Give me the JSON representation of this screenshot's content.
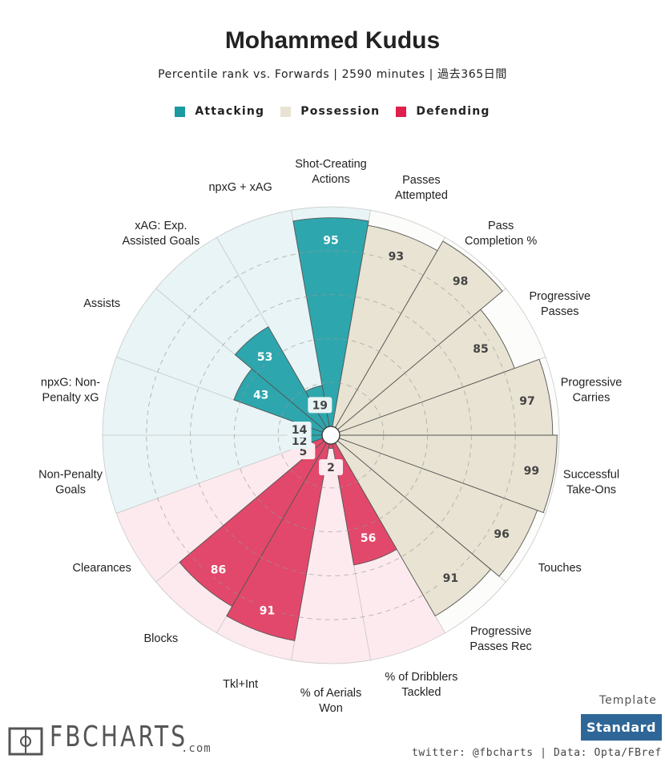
{
  "title": "Mohammed Kudus",
  "subtitle": "Percentile rank vs. Forwards | 2590 minutes | 過去365日間",
  "legend": [
    {
      "name": "Attacking",
      "color": "#2ea6ad"
    },
    {
      "name": "Possession",
      "color": "#e8e3d2"
    },
    {
      "name": "Defending",
      "color": "#e2486b"
    }
  ],
  "chart_data": {
    "type": "polar-bar",
    "range": [
      0,
      100
    ],
    "categories": [
      {
        "label": [
          "Shot-Creating",
          "Actions"
        ],
        "value": 95,
        "group": "Attacking"
      },
      {
        "label": [
          "Passes",
          "Attempted"
        ],
        "value": 93,
        "group": "Possession"
      },
      {
        "label": [
          "Pass",
          "Completion %"
        ],
        "value": 98,
        "group": "Possession"
      },
      {
        "label": [
          "Progressive",
          "Passes"
        ],
        "value": 85,
        "group": "Possession"
      },
      {
        "label": [
          "Progressive",
          "Carries"
        ],
        "value": 97,
        "group": "Possession"
      },
      {
        "label": [
          "Successful",
          "Take-Ons"
        ],
        "value": 99,
        "group": "Possession"
      },
      {
        "label": [
          "Touches"
        ],
        "value": 96,
        "group": "Possession"
      },
      {
        "label": [
          "Progressive",
          "Passes Rec"
        ],
        "value": 91,
        "group": "Possession"
      },
      {
        "label": [
          "% of Dribblers",
          "Tackled"
        ],
        "value": 56,
        "group": "Defending"
      },
      {
        "label": [
          "% of Aerials",
          "Won"
        ],
        "value": 2,
        "group": "Defending"
      },
      {
        "label": [
          "Tkl+Int"
        ],
        "value": 91,
        "group": "Defending"
      },
      {
        "label": [
          "Blocks"
        ],
        "value": 86,
        "group": "Defending"
      },
      {
        "label": [
          "Clearances"
        ],
        "value": 5,
        "group": "Defending"
      },
      {
        "label": [
          "Non-Penalty",
          "Goals"
        ],
        "value": 12,
        "group": "Attacking"
      },
      {
        "label": [
          "npxG: Non-",
          "Penalty xG"
        ],
        "value": 14,
        "group": "Attacking"
      },
      {
        "label": [
          "Assists"
        ],
        "value": 43,
        "group": "Attacking"
      },
      {
        "label": [
          "xAG: Exp.",
          "Assisted Goals"
        ],
        "value": 53,
        "group": "Attacking"
      },
      {
        "label": [
          "npxG + xAG"
        ],
        "value": 19,
        "group": "Attacking"
      }
    ],
    "group_colors": {
      "Attacking": {
        "bar": "#2ea6ad",
        "background": "#e8f4f5",
        "value_bg": "#2ea6ad"
      },
      "Possession": {
        "bar": "#e8e3d2",
        "background": "#fcfcfa",
        "value_bg": "#e8e3d2"
      },
      "Defending": {
        "bar": "#e2486b",
        "background": "#fdeaee",
        "value_bg": "#e2486b"
      }
    },
    "gridlines": [
      20,
      40,
      60,
      80
    ]
  },
  "template": {
    "label": "Template",
    "value": "Standard"
  },
  "credits": "twitter: @fbcharts | Data: Opta/FBref",
  "logo": {
    "text": "FBCHARTS",
    "suffix": ".com"
  }
}
